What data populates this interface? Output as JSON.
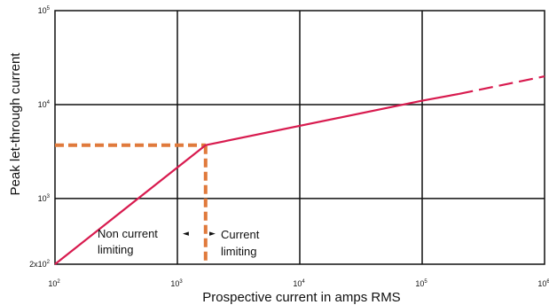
{
  "chart_data": {
    "type": "line",
    "xlabel": "Prospective current in amps RMS",
    "ylabel": "Peak let-through current",
    "x_scale": "log",
    "y_scale": "log",
    "xlim": [
      100,
      1000000
    ],
    "ylim": [
      200,
      100000
    ],
    "grid": true,
    "x_ticks": [
      {
        "value": 100,
        "base": "10",
        "exp": "2"
      },
      {
        "value": 1000,
        "base": "10",
        "exp": "3"
      },
      {
        "value": 10000,
        "base": "10",
        "exp": "4"
      },
      {
        "value": 100000,
        "base": "10",
        "exp": "5"
      },
      {
        "value": 1000000,
        "base": "10",
        "exp": "6"
      }
    ],
    "y_ticks": [
      {
        "value": 200,
        "base": "2x10",
        "exp": "2"
      },
      {
        "value": 1000,
        "base": "10",
        "exp": "3"
      },
      {
        "value": 10000,
        "base": "10",
        "exp": "4"
      },
      {
        "value": 100000,
        "base": "10",
        "exp": "5"
      }
    ],
    "series": [
      {
        "color": "#d81b4f",
        "style": "solid",
        "x": [
          100,
          1700,
          100000,
          200000
        ],
        "y": [
          200,
          3700,
          11000,
          13000
        ]
      },
      {
        "color": "#d81b4f",
        "style": "dashed",
        "x": [
          200000,
          1000000
        ],
        "y": [
          13000,
          20000
        ]
      }
    ],
    "threshold": {
      "color": "#e07a3c",
      "style": "dashed",
      "x": 1700,
      "y": 3700
    },
    "annotations": {
      "left": [
        "Non current",
        "limiting"
      ],
      "right": [
        "Current",
        "limiting"
      ],
      "left_arrow": "◄",
      "right_arrow": "►"
    }
  }
}
